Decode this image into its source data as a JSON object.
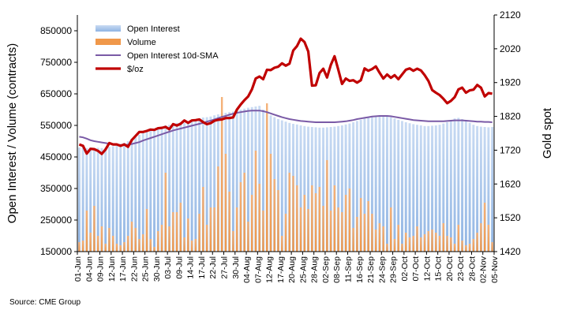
{
  "source_text": "Source: CME Group",
  "chart_data": {
    "type": "bar",
    "y_left_label": "Open Interest / Volume (contracts)",
    "y_right_label": "Gold spot",
    "ylim_left": [
      150000,
      900000
    ],
    "ylim_right": [
      1420,
      2120
    ],
    "y_left_ticks": [
      "150000",
      "250000",
      "350000",
      "450000",
      "550000",
      "650000",
      "750000",
      "850000"
    ],
    "y_right_ticks": [
      "1420",
      "1520",
      "1620",
      "1720",
      "1820",
      "1920",
      "2020",
      "2120"
    ],
    "x_tick_labels": [
      "01-Jun",
      "04-Jun",
      "09-Jun",
      "12-Jun",
      "17-Jun",
      "22-Jun",
      "25-Jun",
      "30-Jun",
      "03-Jul",
      "09-Jul",
      "14-Jul",
      "17-Jul",
      "22-Jul",
      "27-Jul",
      "30-Jul",
      "04-Aug",
      "07-Aug",
      "12-Aug",
      "17-Aug",
      "20-Aug",
      "25-Aug",
      "28-Aug",
      "02-Sep",
      "08-Sep",
      "11-Sep",
      "16-Sep",
      "21-Sep",
      "24-Sep",
      "29-Sep",
      "02-Oct",
      "07-Oct",
      "12-Oct",
      "15-Oct",
      "20-Oct",
      "23-Oct",
      "28-Oct",
      "02-Nov",
      "05-Nov"
    ],
    "grid": false,
    "legend_position": "top-left",
    "colors": {
      "open_interest": "#8fb4e3",
      "volume": "#f0984a",
      "sma": "#7a5aa6",
      "gold": "#c00000"
    },
    "series": [
      {
        "name": "Open Interest",
        "type": "bar",
        "values": [
          480000,
          482000,
          478000,
          480000,
          476000,
          479000,
          478000,
          480000,
          482000,
          484000,
          485000,
          490000,
          495000,
          500000,
          508000,
          512000,
          520000,
          526000,
          530000,
          534000,
          538000,
          542000,
          546000,
          550000,
          552000,
          556000,
          558000,
          560000,
          558000,
          562000,
          566000,
          570000,
          572000,
          575000,
          576000,
          578000,
          582000,
          585000,
          588000,
          590000,
          592000,
          594000,
          596000,
          600000,
          603000,
          606000,
          608000,
          610000,
          612000,
          600000,
          590000,
          582000,
          576000,
          570000,
          566000,
          562000,
          558000,
          555000,
          553000,
          550000,
          548000,
          546000,
          545000,
          544000,
          543000,
          543000,
          544000,
          545000,
          546000,
          548000,
          550000,
          553000,
          556000,
          560000,
          564000,
          568000,
          572000,
          575000,
          578000,
          580000,
          582000,
          580000,
          578000,
          576000,
          572000,
          568000,
          564000,
          560000,
          557000,
          554000,
          552000,
          550000,
          548000,
          548000,
          549000,
          550000,
          552000,
          556000,
          560000,
          566000,
          572000,
          574000,
          570000,
          564000,
          558000,
          552000,
          548000,
          546000,
          545000,
          544000,
          545000
        ],
        "color": "#8fb4e3"
      },
      {
        "name": "Volume",
        "type": "bar",
        "values": [
          180000,
          185000,
          280000,
          210000,
          295000,
          200000,
          230000,
          175000,
          225000,
          200000,
          175000,
          170000,
          180000,
          200000,
          245000,
          225000,
          190000,
          205000,
          285000,
          190000,
          165000,
          215000,
          235000,
          400000,
          230000,
          275000,
          275000,
          305000,
          195000,
          255000,
          185000,
          190000,
          270000,
          355000,
          235000,
          290000,
          290000,
          420000,
          640000,
          460000,
          340000,
          215000,
          290000,
          370000,
          400000,
          245000,
          330000,
          470000,
          365000,
          280000,
          620000,
          460000,
          380000,
          345000,
          200000,
          270000,
          400000,
          390000,
          360000,
          290000,
          330000,
          285000,
          360000,
          335000,
          355000,
          295000,
          440000,
          280000,
          360000,
          290000,
          275000,
          330000,
          350000,
          225000,
          260000,
          320000,
          270000,
          310000,
          270000,
          220000,
          240000,
          230000,
          175000,
          290000,
          190000,
          235000,
          175000,
          210000,
          195000,
          200000,
          230000,
          195000,
          205000,
          215000,
          220000,
          210000,
          200000,
          240000,
          200000,
          195000,
          175000,
          235000,
          185000,
          170000,
          175000,
          190000,
          210000,
          240000,
          305000,
          235000,
          180000
        ],
        "color": "#f0984a"
      },
      {
        "name": "Open Interest 10d-SMA",
        "type": "line",
        "values": [
          514000,
          512000,
          508000,
          503000,
          500000,
          498000,
          496000,
          494000,
          492000,
          490000,
          489000,
          488000,
          488000,
          489000,
          491000,
          494000,
          497000,
          502000,
          506000,
          510000,
          514000,
          518000,
          522000,
          526000,
          530000,
          534000,
          537000,
          540000,
          543000,
          546000,
          549000,
          552000,
          555000,
          558000,
          562000,
          565000,
          569000,
          573000,
          577000,
          580000,
          584000,
          587000,
          590000,
          592000,
          594000,
          596000,
          597000,
          597000,
          597000,
          595000,
          592000,
          588000,
          584000,
          580000,
          576000,
          573000,
          570000,
          568000,
          566000,
          564000,
          563000,
          562000,
          561000,
          560000,
          560000,
          560000,
          560000,
          560000,
          560000,
          561000,
          562000,
          563000,
          565000,
          567000,
          570000,
          572000,
          574000,
          576000,
          578000,
          579000,
          580000,
          580000,
          580000,
          579000,
          577000,
          575000,
          573000,
          571000,
          569000,
          567000,
          566000,
          565000,
          564000,
          563000,
          563000,
          563000,
          563000,
          563000,
          564000,
          565000,
          566000,
          566000,
          566000,
          565000,
          564000,
          563000,
          562000,
          562000,
          561000,
          561000,
          560000
        ],
        "color": "#7a5aa6"
      },
      {
        "name": "$/oz",
        "type": "line",
        "axis": "right",
        "values": [
          1737,
          1733,
          1710,
          1724,
          1723,
          1718,
          1709,
          1722,
          1741,
          1737,
          1737,
          1733,
          1737,
          1730,
          1750,
          1762,
          1774,
          1774,
          1777,
          1781,
          1780,
          1785,
          1786,
          1789,
          1782,
          1797,
          1793,
          1798,
          1808,
          1801,
          1808,
          1809,
          1811,
          1803,
          1797,
          1800,
          1807,
          1810,
          1811,
          1815,
          1815,
          1817,
          1840,
          1855,
          1868,
          1879,
          1900,
          1932,
          1938,
          1930,
          1958,
          1957,
          1964,
          1967,
          1977,
          1970,
          1976,
          2015,
          2028,
          2050,
          2040,
          2012,
          1911,
          1912,
          1948,
          1961,
          1935,
          1972,
          1998,
          1958,
          1916,
          1932,
          1925,
          1927,
          1920,
          1927,
          1962,
          1955,
          1960,
          1968,
          1949,
          1932,
          1944,
          1934,
          1942,
          1930,
          1944,
          1958,
          1962,
          1955,
          1961,
          1956,
          1942,
          1925,
          1898,
          1890,
          1883,
          1872,
          1859,
          1866,
          1877,
          1900,
          1905,
          1890,
          1897,
          1899,
          1913,
          1905,
          1879,
          1889,
          1887
        ],
        "color": "#c00000"
      }
    ]
  }
}
